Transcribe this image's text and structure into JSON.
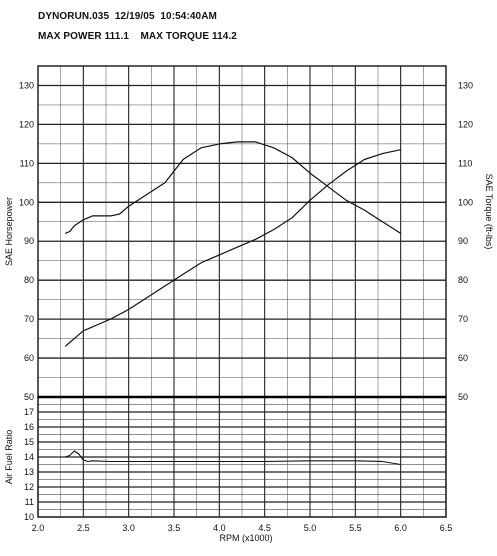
{
  "header": {
    "file": "DYNORUN.035",
    "date": "12/19/05",
    "time": "10:54:40AM",
    "max_power_label": "MAX POWER 111.1",
    "max_torque_label": "MAX TORQUE 114.2"
  },
  "chart_data": [
    {
      "type": "line",
      "title": "",
      "xlabel": "RPM (x1000)",
      "ylabel": "SAE Horsepower",
      "y2label": "SAE Torque (ft-lbs)",
      "xlim": [
        2.0,
        6.5
      ],
      "ylim": [
        50,
        135
      ],
      "x_ticks": [
        "2.0",
        "2.5",
        "3.0",
        "3.5",
        "4.0",
        "4.5",
        "5.0",
        "5.5",
        "6.0",
        "6.5"
      ],
      "y_ticks": [
        "50",
        "60",
        "70",
        "80",
        "90",
        "100",
        "110",
        "120",
        "130"
      ],
      "y2_ticks": [
        "50",
        "60",
        "70",
        "80",
        "90",
        "100",
        "110",
        "120",
        "130"
      ],
      "grid": true,
      "series": [
        {
          "name": "SAE Horsepower",
          "x": [
            2.3,
            2.35,
            2.4,
            2.5,
            2.6,
            2.7,
            2.8,
            3.0,
            3.2,
            3.4,
            3.6,
            3.8,
            4.0,
            4.2,
            4.4,
            4.6,
            4.8,
            5.0,
            5.2,
            5.4,
            5.6,
            5.8,
            6.0
          ],
          "values": [
            63,
            64,
            65,
            67,
            68,
            69,
            70,
            72.5,
            75.5,
            78.5,
            81.5,
            84.5,
            86.5,
            88.5,
            90.5,
            93,
            96,
            100.5,
            104.5,
            108,
            111,
            112.5,
            113.5
          ]
        },
        {
          "name": "SAE Torque",
          "x": [
            2.3,
            2.35,
            2.4,
            2.5,
            2.6,
            2.7,
            2.8,
            2.9,
            3.0,
            3.2,
            3.4,
            3.6,
            3.8,
            4.0,
            4.2,
            4.4,
            4.6,
            4.8,
            5.0,
            5.2,
            5.4,
            5.6,
            5.8,
            6.0
          ],
          "values": [
            92,
            92.5,
            94,
            95.5,
            96.5,
            96.5,
            96.5,
            97,
            99,
            102,
            105,
            111,
            114,
            115,
            115.5,
            115.5,
            114,
            111.5,
            107.5,
            104,
            100.5,
            98,
            95,
            92
          ]
        }
      ]
    },
    {
      "type": "line",
      "title": "",
      "xlabel": "RPM (x1000)",
      "ylabel": "Air Fuel Ratio",
      "xlim": [
        2.0,
        6.5
      ],
      "ylim": [
        10,
        18
      ],
      "y_ticks": [
        "10",
        "11",
        "12",
        "13",
        "14",
        "15",
        "16",
        "17"
      ],
      "grid": true,
      "series": [
        {
          "name": "Air Fuel Ratio",
          "x": [
            2.3,
            2.35,
            2.4,
            2.45,
            2.5,
            2.55,
            2.6,
            2.8,
            3.0,
            3.5,
            4.0,
            4.5,
            5.0,
            5.5,
            5.8,
            6.0
          ],
          "values": [
            14.0,
            14.1,
            14.4,
            14.2,
            13.8,
            13.7,
            13.75,
            13.7,
            13.7,
            13.7,
            13.7,
            13.7,
            13.75,
            13.75,
            13.7,
            13.5
          ]
        }
      ]
    }
  ]
}
